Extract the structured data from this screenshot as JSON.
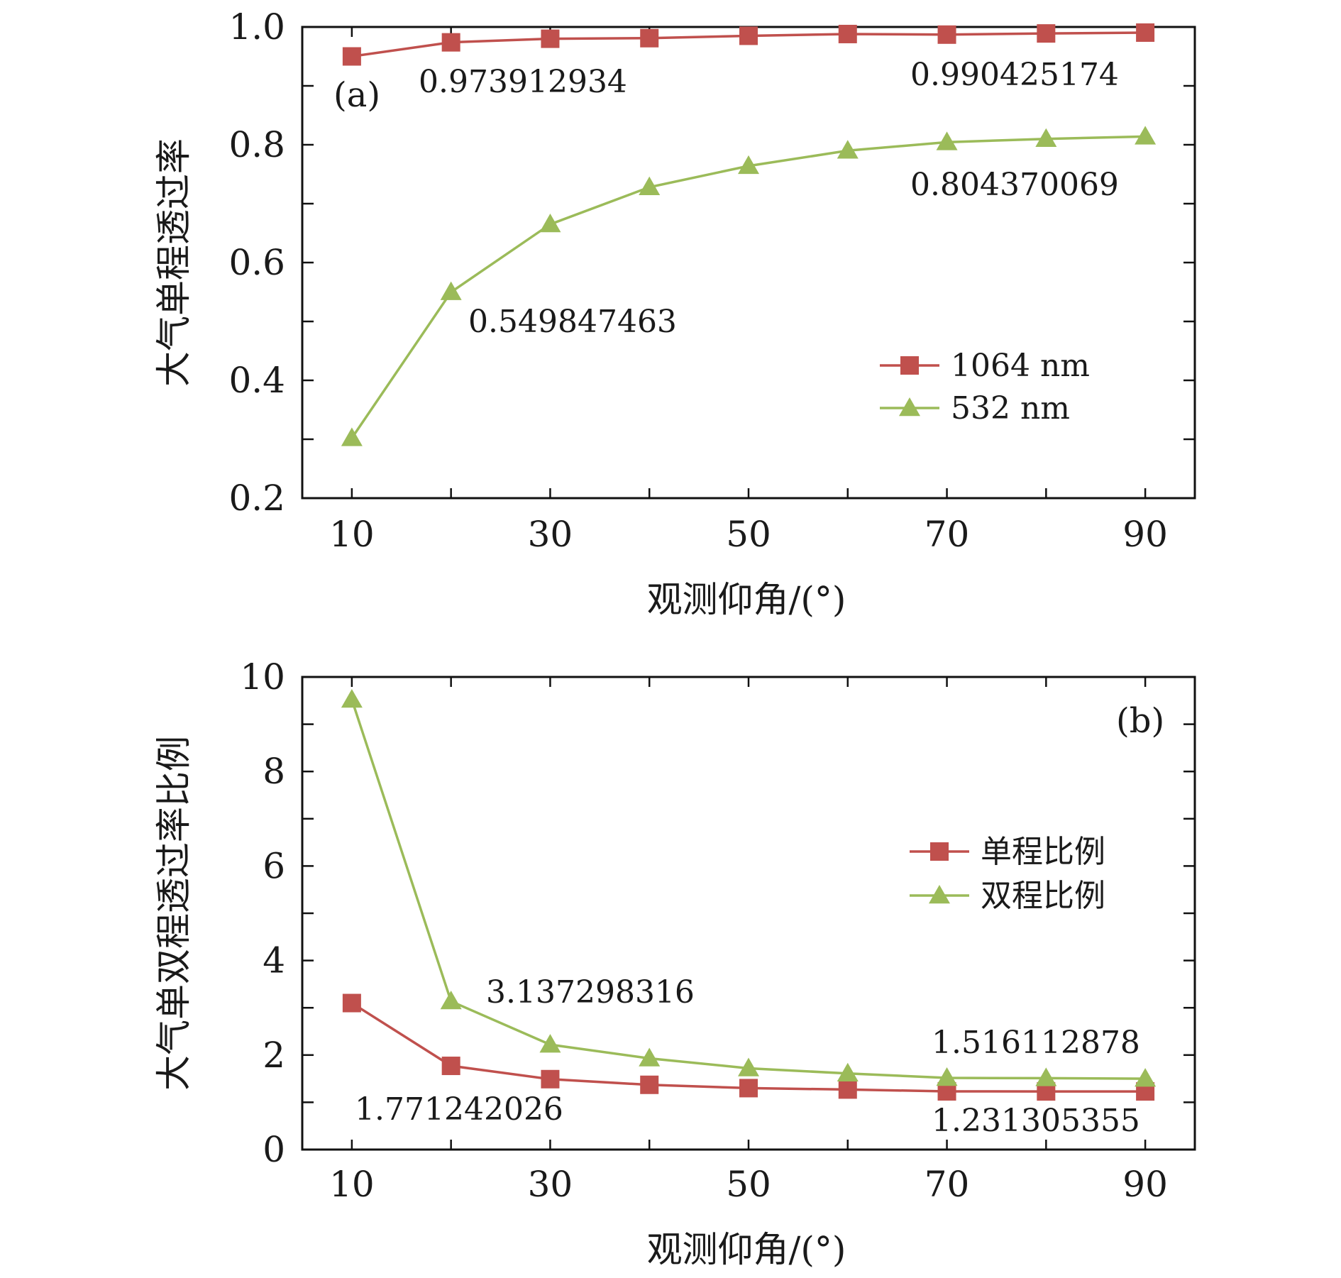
{
  "chart_data": [
    {
      "id": "a",
      "type": "line",
      "panel_label": "(a)",
      "title": "",
      "xlabel": "观测仰角/(°)",
      "ylabel": "大气单程透过率",
      "xlim": [
        5,
        95
      ],
      "ylim": [
        0.2,
        1.0
      ],
      "xticks": [
        10,
        30,
        50,
        70,
        90
      ],
      "xtick_labels": [
        "10",
        "30",
        "50",
        "70",
        "90"
      ],
      "xminor": [
        20,
        40,
        60,
        80
      ],
      "yticks": [
        0.2,
        0.4,
        0.6,
        0.8,
        1.0
      ],
      "ytick_labels": [
        "0.2",
        "0.4",
        "0.6",
        "0.8",
        "1.0"
      ],
      "yminor": [
        0.3,
        0.5,
        0.7,
        0.9
      ],
      "grid": false,
      "legend_position": "center-right",
      "x": [
        10,
        20,
        30,
        40,
        50,
        60,
        70,
        80,
        90
      ],
      "series": [
        {
          "name": "1064 nm",
          "marker": "square",
          "color": "#c0504d",
          "values": [
            0.95,
            0.973912934,
            0.98,
            0.981,
            0.985,
            0.988,
            0.987,
            0.989,
            0.990425174
          ]
        },
        {
          "name": "532 nm",
          "marker": "triangle",
          "color": "#9bbb59",
          "values": [
            0.302,
            0.549847463,
            0.665,
            0.728,
            0.764,
            0.79,
            0.804370069,
            0.81,
            0.814
          ]
        }
      ],
      "annotations": [
        {
          "text": "0.973912934",
          "x": 20,
          "y": 0.973912934
        },
        {
          "text": "0.990425174",
          "x": 80,
          "y": 0.990425174
        },
        {
          "text": "0.804370069",
          "x": 80,
          "y": 0.804370069
        },
        {
          "text": "0.549847463",
          "x": 30,
          "y": 0.549847463
        }
      ]
    },
    {
      "id": "b",
      "type": "line",
      "panel_label": "(b)",
      "title": "",
      "xlabel": "观测仰角/(°)",
      "ylabel": "大气单双程透过率比例",
      "xlim": [
        5,
        95
      ],
      "ylim": [
        0,
        10
      ],
      "xticks": [
        10,
        30,
        50,
        70,
        90
      ],
      "xtick_labels": [
        "10",
        "30",
        "50",
        "70",
        "90"
      ],
      "xminor": [
        20,
        40,
        60,
        80
      ],
      "yticks": [
        0,
        2,
        4,
        6,
        8,
        10
      ],
      "ytick_labels": [
        "0",
        "2",
        "4",
        "6",
        "8",
        "10"
      ],
      "yminor": [
        1,
        3,
        5,
        7,
        9
      ],
      "grid": false,
      "legend_position": "center-right",
      "x": [
        10,
        20,
        30,
        40,
        50,
        60,
        70,
        80,
        90
      ],
      "series": [
        {
          "name": "单程比例",
          "marker": "square",
          "color": "#c0504d",
          "values": [
            3.1,
            1.771242026,
            1.49,
            1.37,
            1.3,
            1.27,
            1.231305355,
            1.23,
            1.23
          ]
        },
        {
          "name": "双程比例",
          "marker": "triangle",
          "color": "#9bbb59",
          "values": [
            9.52,
            3.137298316,
            2.22,
            1.93,
            1.72,
            1.61,
            1.516112878,
            1.51,
            1.5
          ]
        }
      ],
      "annotations": [
        {
          "text": "3.137298316",
          "x": 30,
          "y": 3.137298316
        },
        {
          "text": "1.771242026",
          "x": 20,
          "y": 1.771242026
        },
        {
          "text": "1.516112878",
          "x": 80,
          "y": 1.516112878
        },
        {
          "text": "1.231305355",
          "x": 80,
          "y": 1.231305355
        }
      ]
    }
  ]
}
